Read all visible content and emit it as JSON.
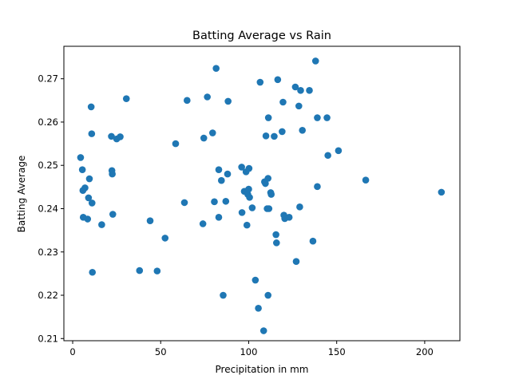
{
  "chart_data": {
    "type": "scatter",
    "title": "Batting Average vs Rain",
    "xlabel": "Precipitation in mm",
    "ylabel": "Batting Average",
    "xlim": [
      -5,
      220
    ],
    "ylim": [
      0.2095,
      0.2775
    ],
    "xticks": [
      0,
      50,
      100,
      150,
      200
    ],
    "yticks": [
      0.21,
      0.22,
      0.23,
      0.24,
      0.25,
      0.26,
      0.27
    ],
    "grid": false,
    "legend": "none",
    "marker_color": "#1f77b4",
    "points": [
      {
        "x": 4.5,
        "y": 0.2518
      },
      {
        "x": 5.5,
        "y": 0.249
      },
      {
        "x": 5.8,
        "y": 0.2442
      },
      {
        "x": 6.0,
        "y": 0.238
      },
      {
        "x": 7.0,
        "y": 0.2448
      },
      {
        "x": 8.5,
        "y": 0.2376
      },
      {
        "x": 9.0,
        "y": 0.2425
      },
      {
        "x": 9.5,
        "y": 0.2469
      },
      {
        "x": 10.5,
        "y": 0.2635
      },
      {
        "x": 10.8,
        "y": 0.2573
      },
      {
        "x": 11.0,
        "y": 0.2413
      },
      {
        "x": 11.2,
        "y": 0.2253
      },
      {
        "x": 16.5,
        "y": 0.2363
      },
      {
        "x": 22.0,
        "y": 0.2567
      },
      {
        "x": 22.3,
        "y": 0.2488
      },
      {
        "x": 22.5,
        "y": 0.248
      },
      {
        "x": 22.8,
        "y": 0.2387
      },
      {
        "x": 25.0,
        "y": 0.2561
      },
      {
        "x": 27.0,
        "y": 0.2566
      },
      {
        "x": 30.5,
        "y": 0.2654
      },
      {
        "x": 38.0,
        "y": 0.2257
      },
      {
        "x": 44.0,
        "y": 0.2372
      },
      {
        "x": 48.0,
        "y": 0.2256
      },
      {
        "x": 52.5,
        "y": 0.2332
      },
      {
        "x": 58.5,
        "y": 0.255
      },
      {
        "x": 63.5,
        "y": 0.2414
      },
      {
        "x": 65.0,
        "y": 0.265
      },
      {
        "x": 74.0,
        "y": 0.2365
      },
      {
        "x": 74.5,
        "y": 0.2563
      },
      {
        "x": 76.5,
        "y": 0.2658
      },
      {
        "x": 79.5,
        "y": 0.2575
      },
      {
        "x": 80.5,
        "y": 0.2416
      },
      {
        "x": 81.5,
        "y": 0.2724
      },
      {
        "x": 83.0,
        "y": 0.249
      },
      {
        "x": 83.0,
        "y": 0.238
      },
      {
        "x": 84.5,
        "y": 0.2465
      },
      {
        "x": 85.5,
        "y": 0.22
      },
      {
        "x": 87.0,
        "y": 0.2417
      },
      {
        "x": 88.0,
        "y": 0.248
      },
      {
        "x": 88.3,
        "y": 0.2648
      },
      {
        "x": 96.0,
        "y": 0.2496
      },
      {
        "x": 96.2,
        "y": 0.2391
      },
      {
        "x": 97.5,
        "y": 0.244
      },
      {
        "x": 98.5,
        "y": 0.2485
      },
      {
        "x": 99.0,
        "y": 0.2362
      },
      {
        "x": 99.5,
        "y": 0.2433
      },
      {
        "x": 100.0,
        "y": 0.2445
      },
      {
        "x": 100.2,
        "y": 0.2493
      },
      {
        "x": 100.5,
        "y": 0.2426
      },
      {
        "x": 102.0,
        "y": 0.2402
      },
      {
        "x": 103.8,
        "y": 0.2235
      },
      {
        "x": 105.5,
        "y": 0.217
      },
      {
        "x": 106.5,
        "y": 0.2692
      },
      {
        "x": 108.5,
        "y": 0.2118
      },
      {
        "x": 109.0,
        "y": 0.2462
      },
      {
        "x": 109.5,
        "y": 0.2458
      },
      {
        "x": 109.8,
        "y": 0.2568
      },
      {
        "x": 110.5,
        "y": 0.24
      },
      {
        "x": 111.0,
        "y": 0.247
      },
      {
        "x": 111.0,
        "y": 0.22
      },
      {
        "x": 111.2,
        "y": 0.261
      },
      {
        "x": 111.5,
        "y": 0.24
      },
      {
        "x": 112.5,
        "y": 0.2437
      },
      {
        "x": 112.8,
        "y": 0.2433
      },
      {
        "x": 114.5,
        "y": 0.2567
      },
      {
        "x": 115.5,
        "y": 0.234
      },
      {
        "x": 115.8,
        "y": 0.2321
      },
      {
        "x": 116.5,
        "y": 0.2698
      },
      {
        "x": 119.0,
        "y": 0.2578
      },
      {
        "x": 119.5,
        "y": 0.2646
      },
      {
        "x": 120.0,
        "y": 0.2385
      },
      {
        "x": 120.5,
        "y": 0.2377
      },
      {
        "x": 123.0,
        "y": 0.238
      },
      {
        "x": 126.5,
        "y": 0.2681
      },
      {
        "x": 127.0,
        "y": 0.2278
      },
      {
        "x": 128.5,
        "y": 0.2637
      },
      {
        "x": 129.0,
        "y": 0.2404
      },
      {
        "x": 129.5,
        "y": 0.2673
      },
      {
        "x": 130.5,
        "y": 0.2581
      },
      {
        "x": 134.5,
        "y": 0.2673
      },
      {
        "x": 136.5,
        "y": 0.2325
      },
      {
        "x": 138.0,
        "y": 0.2741
      },
      {
        "x": 139.0,
        "y": 0.2451
      },
      {
        "x": 139.0,
        "y": 0.261
      },
      {
        "x": 144.5,
        "y": 0.261
      },
      {
        "x": 145.0,
        "y": 0.2523
      },
      {
        "x": 151.0,
        "y": 0.2534
      },
      {
        "x": 166.5,
        "y": 0.2466
      },
      {
        "x": 209.5,
        "y": 0.2438
      }
    ]
  }
}
